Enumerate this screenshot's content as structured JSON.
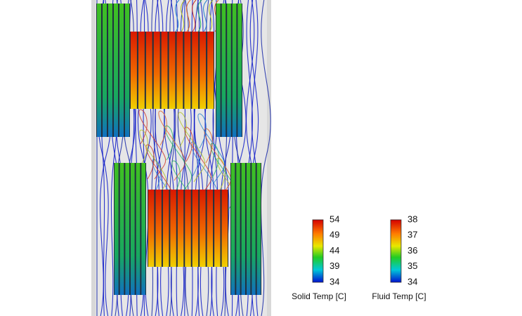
{
  "legends": [
    {
      "title": "Solid Temp [C]",
      "ticks": [
        54,
        49,
        44,
        39,
        34
      ]
    },
    {
      "title": "Fluid Temp [C]",
      "ticks": [
        38,
        37,
        36,
        35,
        34
      ]
    }
  ]
}
